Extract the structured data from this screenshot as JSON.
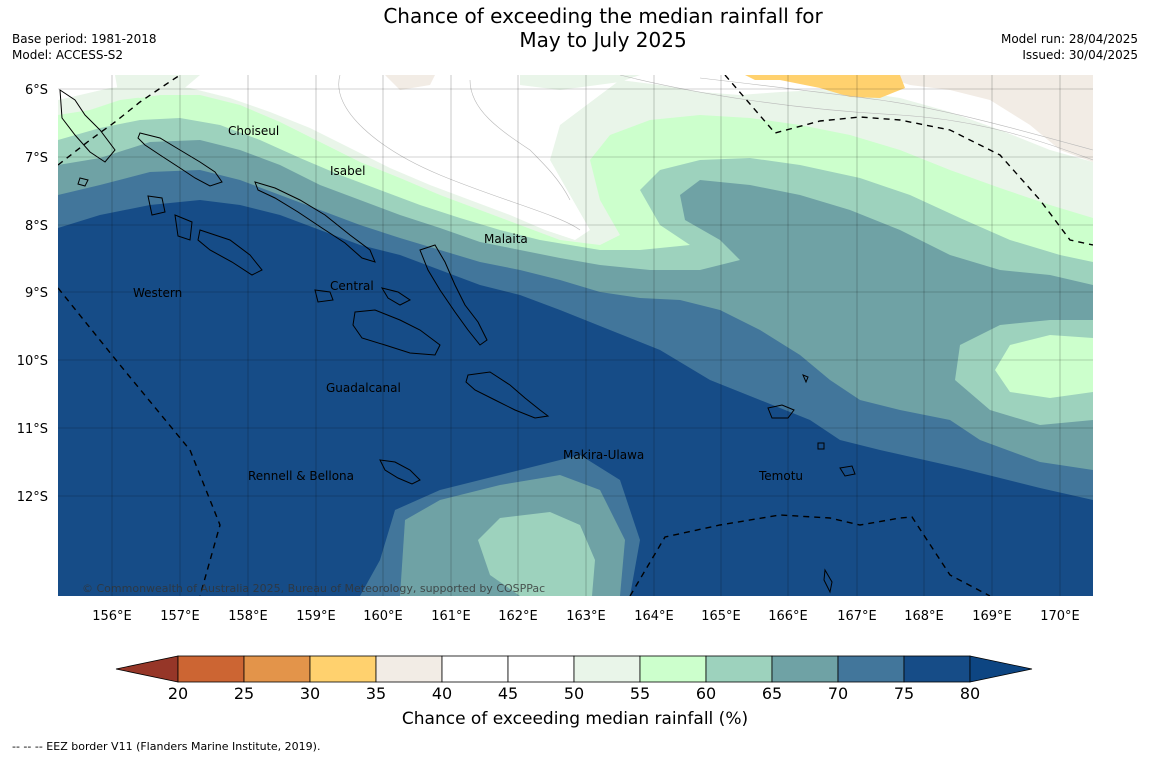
{
  "header": {
    "title_line1": "Chance of exceeding the median rainfall for",
    "title_line2": "May to July 2025",
    "base_period": "Base period: 1981-2018",
    "model": "Model: ACCESS-S2",
    "model_run": "Model run: 28/04/2025",
    "issued": "Issued: 30/04/2025"
  },
  "map": {
    "lat_labels": [
      "6°S",
      "7°S",
      "8°S",
      "9°S",
      "10°S",
      "11°S",
      "12°S"
    ],
    "lon_labels": [
      "156°E",
      "157°E",
      "158°E",
      "159°E",
      "160°E",
      "161°E",
      "162°E",
      "163°E",
      "164°E",
      "165°E",
      "166°E",
      "167°E",
      "168°E",
      "169°E",
      "170°E"
    ],
    "places": [
      "Choiseul",
      "Isabel",
      "Malaita",
      "Western",
      "Central",
      "Guadalcanal",
      "Makira-Ulawa",
      "Rennell & Bellona",
      "Temotu"
    ],
    "copyright": "© Commonwealth of Australia 2025, Bureau of Meteorology, supported by COSPPac"
  },
  "colorbar": {
    "ticks": [
      "20",
      "25",
      "30",
      "35",
      "40",
      "45",
      "50",
      "55",
      "60",
      "65",
      "70",
      "75",
      "80"
    ],
    "colors": [
      "#b5472a",
      "#cc6533",
      "#e3944a",
      "#ffd16e",
      "#f2ece5",
      "#ffffff",
      "#ffffff",
      "#e9f5e9",
      "#ccffcc",
      "#9dd2bd",
      "#6fa2a5",
      "#42769b",
      "#164c87"
    ],
    "under_color": "#963628",
    "over_color": "#0d4582",
    "title": "Chance of exceeding median rainfall (%)"
  },
  "legend": {
    "eez": "--  --  -- EEZ border V11 (Flanders Marine Institute, 2019)."
  }
}
